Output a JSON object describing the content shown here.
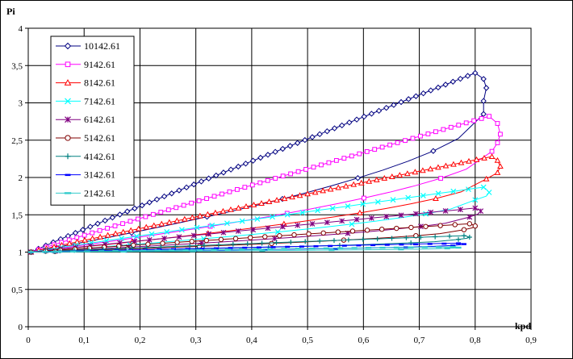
{
  "chart_data": {
    "type": "scatter",
    "title": "",
    "xlabel": "kpd",
    "ylabel": "Pi",
    "xlim": [
      0,
      0.9
    ],
    "ylim": [
      0,
      4
    ],
    "x_ticks": [
      "0",
      "0,1",
      "0,2",
      "0,3",
      "0,4",
      "0,5",
      "0,6",
      "0,7",
      "0,8",
      "0,9"
    ],
    "y_ticks": [
      "0",
      "0,5",
      "1",
      "1,5",
      "2",
      "2,5",
      "3",
      "3,5",
      "4"
    ],
    "grid": true,
    "legend_position": "top-left",
    "series": [
      {
        "name": "10142.61",
        "color": "#000080",
        "marker": "diamond",
        "upper_end": [
          0.8,
          3.4
        ],
        "nose": [
          0.815,
          3.2
        ],
        "lower_end": [
          0.815,
          2.85
        ]
      },
      {
        "name": "9142.61",
        "color": "#FF00FF",
        "marker": "square",
        "upper_end": [
          0.825,
          2.82
        ],
        "nose": [
          0.84,
          2.58
        ],
        "lower_end": [
          0.83,
          2.35
        ]
      },
      {
        "name": "8142.61",
        "color": "#FF0000",
        "marker": "triangle",
        "upper_end": [
          0.83,
          2.28
        ],
        "nose": [
          0.84,
          2.15
        ],
        "lower_end": [
          0.82,
          1.98
        ]
      },
      {
        "name": "7142.61",
        "color": "#00FFFF",
        "marker": "x",
        "upper_end": [
          0.815,
          1.87
        ],
        "nose": [
          0.82,
          1.8
        ],
        "lower_end": [
          0.8,
          1.7
        ]
      },
      {
        "name": "6142.61",
        "color": "#800080",
        "marker": "star",
        "upper_end": [
          0.8,
          1.59
        ],
        "nose": [
          0.805,
          1.55
        ],
        "lower_end": [
          0.79,
          1.47
        ]
      },
      {
        "name": "5142.61",
        "color": "#800000",
        "marker": "circle",
        "upper_end": [
          0.79,
          1.38
        ],
        "nose": [
          0.795,
          1.35
        ],
        "lower_end": [
          0.78,
          1.3
        ]
      },
      {
        "name": "4142.61",
        "color": "#008080",
        "marker": "plus",
        "upper_end": [
          0.78,
          1.22
        ],
        "nose": [
          0.785,
          1.2
        ],
        "lower_end": [
          0.77,
          1.17
        ]
      },
      {
        "name": "3142.61",
        "color": "#0000FF",
        "marker": "dash",
        "upper_end": [
          0.77,
          1.12
        ],
        "nose": [
          0.775,
          1.11
        ],
        "lower_end": [
          0.76,
          1.09
        ]
      },
      {
        "name": "2142.61",
        "color": "#33CCCC",
        "marker": "bar",
        "upper_end": [
          0.76,
          1.07
        ],
        "nose": [
          0.765,
          1.06
        ],
        "lower_end": [
          0.75,
          1.05
        ]
      }
    ]
  }
}
